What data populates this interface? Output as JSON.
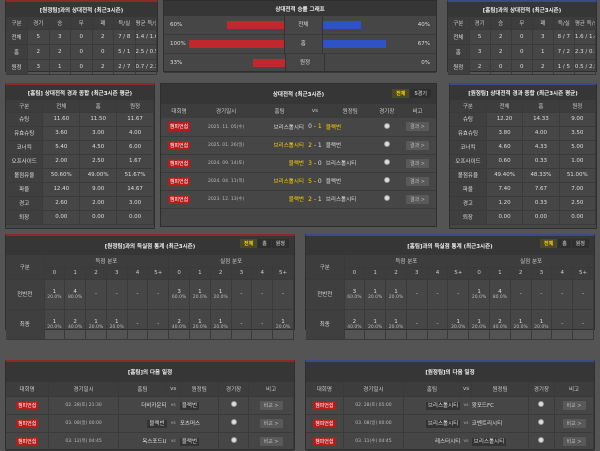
{
  "colors": {
    "home": "#c0282d",
    "away": "#2f52c4",
    "league_badge": "#b51d1d",
    "highlight": "#ffd200"
  },
  "h2h_headers": [
    "구분",
    "경기",
    "승",
    "무",
    "패",
    "득/실",
    "평균 득/실"
  ],
  "h2h_left": {
    "title": "[원정팀]과의 상대전적 (최근3시즌)",
    "rows": [
      [
        "전체",
        "5",
        "3",
        "0",
        "2",
        "7 / 8",
        "1.4 / 1.6"
      ],
      [
        "홈",
        "2",
        "2",
        "0",
        "0",
        "5 / 1",
        "2.5 / 0.5"
      ],
      [
        "원정",
        "3",
        "1",
        "0",
        "2",
        "2 / 7",
        "0.7 / 2.3"
      ]
    ]
  },
  "h2h_right": {
    "title": "[홈팀]과의 상대전적 (최근3시즌)",
    "rows": [
      [
        "전체",
        "5",
        "2",
        "0",
        "3",
        "8 / 7",
        "1.6 / 1.4"
      ],
      [
        "홈",
        "3",
        "2",
        "0",
        "1",
        "7 / 2",
        "2.3 / 0.7"
      ],
      [
        "원정",
        "2",
        "0",
        "0",
        "2",
        "1 / 5",
        "0.5 / 2.5"
      ]
    ]
  },
  "graph": {
    "title": "상대전적 승률 그래프",
    "rows": [
      {
        "label": "전체",
        "left": "60%",
        "left_value": 60,
        "right": "40%",
        "right_value": 40
      },
      {
        "label": "홈",
        "left": "100%",
        "left_value": 100,
        "right": "67%",
        "right_value": 67
      },
      {
        "label": "원정",
        "left": "33%",
        "left_value": 33,
        "right": "0%",
        "right_value": 0
      }
    ]
  },
  "stats_headers": [
    "구분",
    "전체",
    "홈",
    "원정"
  ],
  "stats_left": {
    "title": "[홈팀] 상대전적 경과 종합 (최근3시즌 평균)",
    "rows": [
      [
        "슈팅",
        "11.60",
        "11.50",
        "11.67"
      ],
      [
        "유효슈팅",
        "3.60",
        "3.00",
        "4.00"
      ],
      [
        "코너킥",
        "5.40",
        "4.50",
        "6.00"
      ],
      [
        "오프사이드",
        "2.00",
        "2.50",
        "1.67"
      ],
      [
        "볼점유율",
        "50.60%",
        "49.00%",
        "51.67%"
      ],
      [
        "파울",
        "12.40",
        "9.00",
        "14.67"
      ],
      [
        "경고",
        "2.60",
        "2.00",
        "3.00"
      ],
      [
        "퇴장",
        "0.00",
        "0.00",
        "0.00"
      ]
    ]
  },
  "stats_right": {
    "title": "[원정팀] 상대전적 경과 종합 (최근3시즌 평균)",
    "rows": [
      [
        "슈팅",
        "12.20",
        "14.33",
        "9.00"
      ],
      [
        "유효슈팅",
        "3.80",
        "4.00",
        "3.50"
      ],
      [
        "코너킥",
        "4.60",
        "4.33",
        "5.00"
      ],
      [
        "오프사이드",
        "0.60",
        "0.33",
        "1.00"
      ],
      [
        "볼점유율",
        "49.40%",
        "48.33%",
        "51.00%"
      ],
      [
        "파울",
        "7.40",
        "7.67",
        "7.00"
      ],
      [
        "경고",
        "1.20",
        "0.33",
        "2.50"
      ],
      [
        "퇴장",
        "0.00",
        "0.00",
        "0.00"
      ]
    ]
  },
  "matches": {
    "title": "상대전적 (최근3시즌)",
    "tabs": [
      "전체",
      "5경기"
    ],
    "headers": [
      "대회명",
      "경기일시",
      "홈팀",
      "vs",
      "원정팀",
      "경기장",
      "비고"
    ],
    "rows": [
      {
        "league": "챔피언쉽",
        "date": "2025. 11. 05(수)",
        "home": "브리스톨시티",
        "hs": "0",
        "as": "1",
        "away": "블랙번",
        "winner": "away",
        "btn": "결과 >"
      },
      {
        "league": "챔피언쉽",
        "date": "2025. 01. 26(일)",
        "home": "브리스톨시티",
        "hs": "2",
        "as": "1",
        "away": "블랙번",
        "winner": "home",
        "btn": "결과 >"
      },
      {
        "league": "챔피언쉽",
        "date": "2024. 09. 14(토)",
        "home": "블랙번",
        "hs": "3",
        "as": "0",
        "away": "브리스톨시티",
        "winner": "home",
        "btn": "결과 >"
      },
      {
        "league": "챔피언쉽",
        "date": "2024. 04. 11(목)",
        "home": "브리스톨시티",
        "hs": "5",
        "as": "0",
        "away": "블랙번",
        "winner": "home",
        "btn": "결과 >"
      },
      {
        "league": "챔피언쉽",
        "date": "2023. 12. 13(수)",
        "home": "블랙번",
        "hs": "2",
        "as": "1",
        "away": "브리스톨시티",
        "winner": "home",
        "btn": "결과 >"
      }
    ]
  },
  "dist_tabs": [
    "전체",
    "홈",
    "원정"
  ],
  "dist_group_labels": [
    "구분",
    "득점 분포",
    "실점 분포"
  ],
  "dist_cols": [
    "0",
    "1",
    "2",
    "3",
    "4",
    "5+"
  ],
  "dist_left": {
    "title": "[원정팀]과의 득실점 통계 (최근3시즌)",
    "rows": [
      {
        "label": "전반전",
        "cells": [
          [
            "1",
            "20.0%"
          ],
          [
            "4",
            "80.0%"
          ],
          [
            "-",
            ""
          ],
          [
            "-",
            ""
          ],
          [
            "-",
            ""
          ],
          [
            "-",
            ""
          ],
          [
            "3",
            "60.0%"
          ],
          [
            "1",
            "20.0%"
          ],
          [
            "1",
            "20.0%"
          ],
          [
            "-",
            ""
          ],
          [
            "-",
            ""
          ],
          [
            "-",
            ""
          ]
        ]
      },
      {
        "label": "최종",
        "cells": [
          [
            "1",
            "20.0%"
          ],
          [
            "2",
            "40.0%"
          ],
          [
            "1",
            "20.0%"
          ],
          [
            "1",
            "20.0%"
          ],
          [
            "-",
            ""
          ],
          [
            "-",
            ""
          ],
          [
            "2",
            "40.0%"
          ],
          [
            "1",
            "20.0%"
          ],
          [
            "1",
            "20.0%"
          ],
          [
            "-",
            ""
          ],
          [
            "-",
            ""
          ],
          [
            "1",
            "20.0%"
          ]
        ]
      }
    ]
  },
  "dist_right": {
    "title": "[홈팀]과의 득실점 통계 (최근3시즌)",
    "rows": [
      {
        "label": "전반전",
        "cells": [
          [
            "3",
            "60.0%"
          ],
          [
            "1",
            "20.0%"
          ],
          [
            "1",
            "20.0%"
          ],
          [
            "-",
            ""
          ],
          [
            "-",
            ""
          ],
          [
            "-",
            ""
          ],
          [
            "1",
            "20.0%"
          ],
          [
            "4",
            "80.0%"
          ],
          [
            "-",
            ""
          ],
          [
            "-",
            ""
          ],
          [
            "-",
            ""
          ],
          [
            "-",
            ""
          ]
        ]
      },
      {
        "label": "최종",
        "cells": [
          [
            "2",
            "40.0%"
          ],
          [
            "1",
            "20.0%"
          ],
          [
            "1",
            "20.0%"
          ],
          [
            "-",
            ""
          ],
          [
            "-",
            ""
          ],
          [
            "1",
            "20.0%"
          ],
          [
            "1",
            "20.0%"
          ],
          [
            "2",
            "40.0%"
          ],
          [
            "1",
            "20.0%"
          ],
          [
            "1",
            "20.0%"
          ],
          [
            "-",
            ""
          ],
          [
            "-",
            ""
          ]
        ]
      }
    ]
  },
  "sched_headers": [
    "대회명",
    "경기일시",
    "홈팀",
    "vs",
    "원정팀",
    "경기장",
    "비고"
  ],
  "sched_left": {
    "title": "[홈팀]의 다음 일정",
    "rows": [
      {
        "league": "챔피언쉽",
        "date": "02. 28(토) 21:30",
        "home": "더비카운티",
        "away": "블랙번",
        "focus": "away",
        "btn": "비교 >"
      },
      {
        "league": "챔피언쉽",
        "date": "03. 08(일) 00:00",
        "home": "블랙번",
        "away": "포츠머스",
        "focus": "home",
        "btn": "비교 >"
      },
      {
        "league": "챔피언쉽",
        "date": "03. 12(목) 04:45",
        "home": "옥스포드U",
        "away": "블랙번",
        "focus": "away",
        "btn": "비교 >"
      }
    ]
  },
  "sched_right": {
    "title": "[원정팀]의 다음 일정",
    "rows": [
      {
        "league": "챔피언쉽",
        "date": "02. 28(토) 05:00",
        "home": "브리스톨시티",
        "away": "왓포드FC",
        "focus": "home",
        "btn": "비교 >"
      },
      {
        "league": "챔피언쉽",
        "date": "03. 08(일) 00:00",
        "home": "브리스톨시티",
        "away": "코벤트리시티",
        "focus": "home",
        "btn": "비교 >"
      },
      {
        "league": "챔피언쉽",
        "date": "03. 11(수) 04:45",
        "home": "레스터시티",
        "away": "브리스톨시티",
        "focus": "away",
        "btn": "비교 >"
      }
    ]
  }
}
